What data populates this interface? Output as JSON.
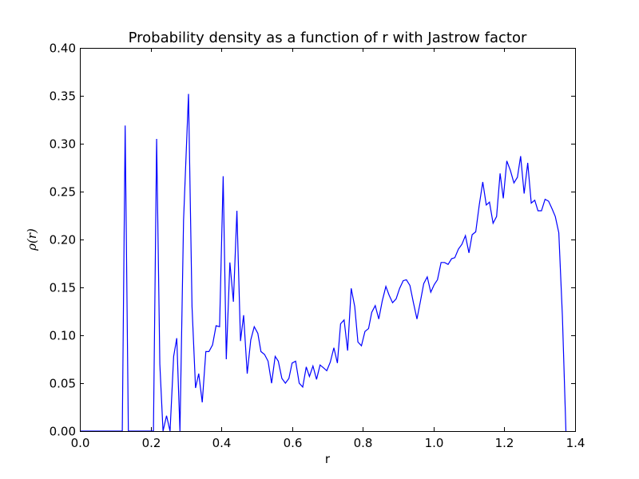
{
  "chart_data": {
    "type": "line",
    "title": "Probability density as a function of r with Jastrow factor",
    "xlabel": "r",
    "ylabel": "ρ(r)",
    "xlim": [
      0.0,
      1.4
    ],
    "ylim": [
      0.0,
      0.4
    ],
    "xticks": [
      "0.0",
      "0.2",
      "0.4",
      "0.6",
      "0.8",
      "1.0",
      "1.2",
      "1.4"
    ],
    "yticks": [
      "0.00",
      "0.05",
      "0.10",
      "0.15",
      "0.20",
      "0.25",
      "0.30",
      "0.35",
      "0.40"
    ],
    "grid": false,
    "color": "#0000ff",
    "series": [
      {
        "x": [
          0.0,
          0.12,
          0.128,
          0.137,
          0.2,
          0.208,
          0.217,
          0.226,
          0.235,
          0.245,
          0.255,
          0.265,
          0.274,
          0.283,
          0.293,
          0.307,
          0.317,
          0.327,
          0.336,
          0.346,
          0.356,
          0.365,
          0.375,
          0.385,
          0.395,
          0.405,
          0.414,
          0.424,
          0.434,
          0.444,
          0.454,
          0.463,
          0.473,
          0.483,
          0.493,
          0.503,
          0.512,
          0.522,
          0.532,
          0.542,
          0.552,
          0.561,
          0.571,
          0.581,
          0.591,
          0.6,
          0.61,
          0.62,
          0.63,
          0.64,
          0.649,
          0.659,
          0.669,
          0.679,
          0.689,
          0.698,
          0.708,
          0.718,
          0.728,
          0.737,
          0.747,
          0.757,
          0.767,
          0.777,
          0.786,
          0.796,
          0.806,
          0.816,
          0.825,
          0.835,
          0.845,
          0.855,
          0.865,
          0.874,
          0.884,
          0.894,
          0.904,
          0.914,
          0.923,
          0.933,
          0.943,
          0.953,
          0.962,
          0.972,
          0.982,
          0.992,
          1.002,
          1.011,
          1.021,
          1.031,
          1.041,
          1.051,
          1.06,
          1.07,
          1.08,
          1.09,
          1.1,
          1.109,
          1.119,
          1.129,
          1.139,
          1.149,
          1.158,
          1.168,
          1.178,
          1.188,
          1.197,
          1.207,
          1.217,
          1.227,
          1.237,
          1.246,
          1.256,
          1.266,
          1.276,
          1.286,
          1.295,
          1.305,
          1.315,
          1.325,
          1.335,
          1.344,
          1.354,
          1.364,
          1.374
        ],
        "y": [
          0.0,
          0.0,
          0.319,
          0.0,
          0.0,
          0.0,
          0.305,
          0.07,
          0.0,
          0.016,
          0.0,
          0.078,
          0.097,
          0.0,
          0.22,
          0.352,
          0.13,
          0.045,
          0.06,
          0.03,
          0.083,
          0.083,
          0.09,
          0.11,
          0.109,
          0.266,
          0.075,
          0.176,
          0.135,
          0.23,
          0.094,
          0.121,
          0.06,
          0.095,
          0.109,
          0.102,
          0.083,
          0.08,
          0.073,
          0.05,
          0.078,
          0.073,
          0.055,
          0.05,
          0.055,
          0.071,
          0.073,
          0.05,
          0.046,
          0.067,
          0.057,
          0.068,
          0.054,
          0.069,
          0.066,
          0.063,
          0.072,
          0.087,
          0.071,
          0.112,
          0.116,
          0.084,
          0.149,
          0.13,
          0.093,
          0.089,
          0.104,
          0.107,
          0.124,
          0.131,
          0.117,
          0.136,
          0.151,
          0.142,
          0.134,
          0.138,
          0.149,
          0.157,
          0.158,
          0.152,
          0.134,
          0.117,
          0.134,
          0.154,
          0.161,
          0.145,
          0.153,
          0.158,
          0.176,
          0.176,
          0.174,
          0.18,
          0.181,
          0.19,
          0.195,
          0.204,
          0.186,
          0.205,
          0.208,
          0.236,
          0.26,
          0.236,
          0.239,
          0.217,
          0.224,
          0.269,
          0.243,
          0.282,
          0.272,
          0.259,
          0.265,
          0.287,
          0.248,
          0.28,
          0.238,
          0.241,
          0.23,
          0.23,
          0.242,
          0.24,
          0.232,
          0.224,
          0.207,
          0.12,
          0.0
        ]
      }
    ]
  }
}
